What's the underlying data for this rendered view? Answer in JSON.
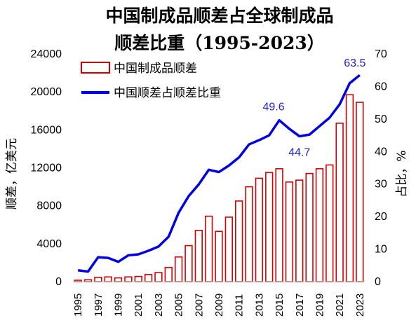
{
  "chart_data": {
    "type": "bar+line",
    "title_line1": "中国制成品顺差占全球制成品",
    "title_line2": "顺差比重（1995-2023）",
    "ylabel_left": "顺差，亿美元",
    "ylabel_right": "占比，%",
    "ylim_left": [
      0,
      24000
    ],
    "ylim_right": [
      0,
      70
    ],
    "yticks_left": [
      "0",
      "4000",
      "8000",
      "12000",
      "16000",
      "20000",
      "24000"
    ],
    "yticks_right": [
      "0",
      "10",
      "20",
      "30",
      "40",
      "50",
      "60",
      "70"
    ],
    "categories": [
      1995,
      1996,
      1997,
      1998,
      1999,
      2000,
      2001,
      2002,
      2003,
      2004,
      2005,
      2006,
      2007,
      2008,
      2009,
      2010,
      2011,
      2012,
      2013,
      2014,
      2015,
      2016,
      2017,
      2018,
      2019,
      2020,
      2021,
      2022,
      2023
    ],
    "xtick_labels": [
      "1995",
      "1997",
      "1999",
      "2001",
      "2003",
      "2005",
      "2007",
      "2009",
      "2011",
      "2013",
      "2015",
      "2017",
      "2019",
      "2021",
      "2023"
    ],
    "series": [
      {
        "name": "中国制成品顺差",
        "type": "bar",
        "axis": "left",
        "color": "#d40000",
        "values": [
          150,
          200,
          450,
          500,
          400,
          500,
          550,
          750,
          950,
          1500,
          2600,
          3800,
          5400,
          6900,
          5300,
          6800,
          8500,
          10000,
          10900,
          11500,
          11900,
          10500,
          10700,
          11400,
          11900,
          12300,
          16700,
          19700,
          18900
        ]
      },
      {
        "name": "中国顺差占顺差比重",
        "type": "line",
        "axis": "right",
        "color": "#0000e6",
        "values": [
          3.5,
          3.1,
          7.5,
          7.3,
          6.1,
          8.1,
          8.4,
          9.5,
          10.8,
          13.8,
          21.2,
          26.3,
          29.9,
          34.4,
          33.7,
          35.7,
          38.2,
          42.2,
          43.5,
          45.0,
          49.6,
          47.0,
          44.7,
          45.2,
          47.8,
          50.4,
          54.5,
          61.0,
          63.5
        ]
      }
    ],
    "annotations": [
      {
        "year": 2015,
        "text": "49.6"
      },
      {
        "year": 2017,
        "text": "44.7"
      },
      {
        "year": 2023,
        "text": "63.5"
      }
    ],
    "legend": {
      "placement": "top-left"
    },
    "grid": false
  }
}
